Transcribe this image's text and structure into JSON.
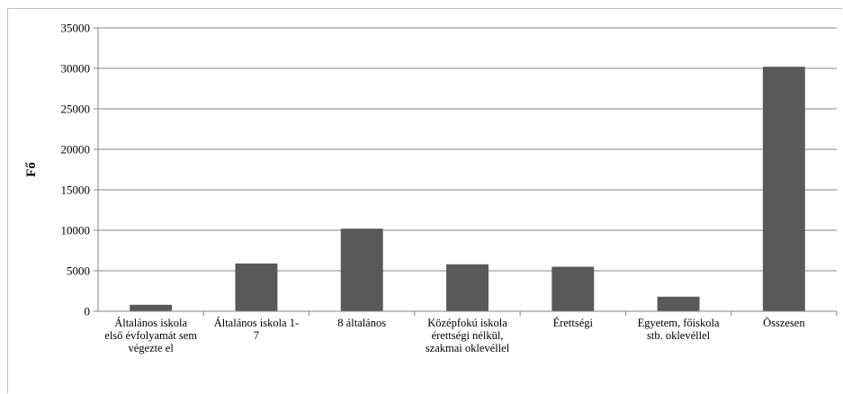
{
  "chart_data": {
    "type": "bar",
    "categories": [
      [
        "Általános iskola",
        "első évfolyamát sem",
        "végezte el"
      ],
      [
        "Általános iskola 1-",
        "7"
      ],
      [
        "8 általános"
      ],
      [
        "Középfokú iskola",
        "érettségi nélkül,",
        "szakmai oklevéllel"
      ],
      [
        "Érettségi"
      ],
      [
        "Egyetem, főiskola",
        "stb. oklevéllel"
      ],
      [
        "Összesen"
      ]
    ],
    "values": [
      800,
      5900,
      10200,
      5800,
      5500,
      1800,
      30200
    ],
    "ylabel": "Fő",
    "xlabel": "",
    "ylim": [
      0,
      35000
    ],
    "yticks": [
      0,
      5000,
      10000,
      15000,
      20000,
      25000,
      30000,
      35000
    ],
    "bar_color": "#595959",
    "grid": true
  }
}
